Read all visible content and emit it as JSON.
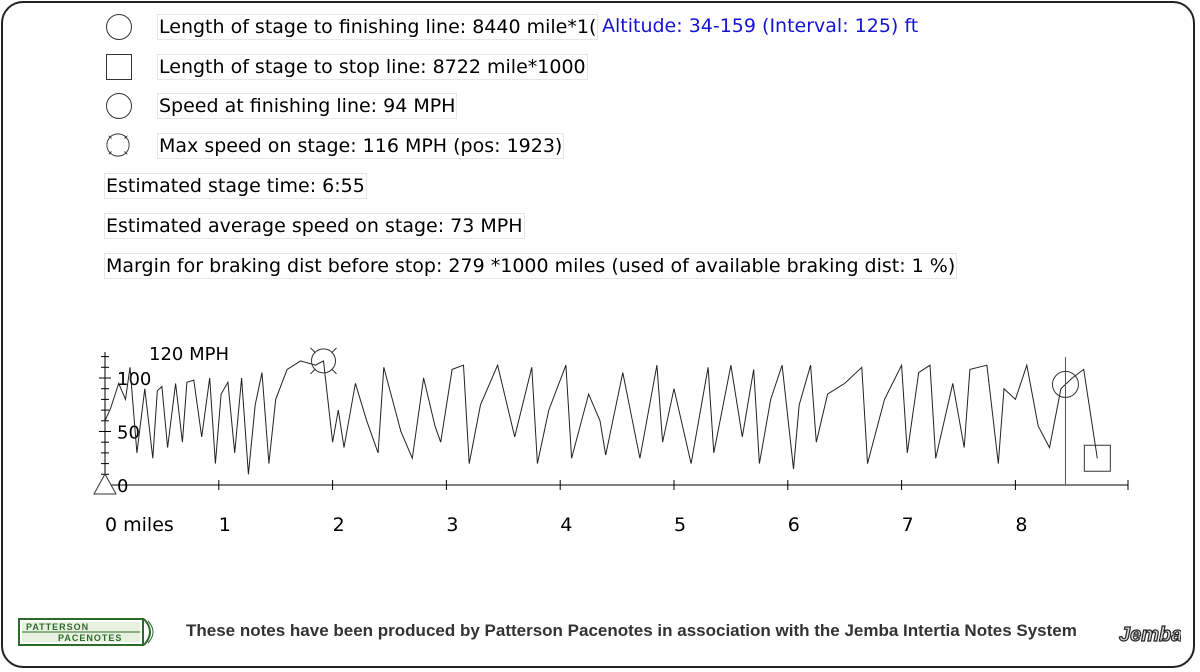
{
  "legend": {
    "finish_length": "Length of stage to finishing line: 8440 mile*1(",
    "altitude": "Altitude: 34-159 (Interval: 125) ft",
    "stop_length": "Length of stage to stop line: 8722 mile*1000",
    "finish_speed": "Speed at finishing line: 94 MPH",
    "max_speed": "Max speed on stage: 116 MPH (pos: 1923)",
    "stage_time": "Estimated stage time: 6:55",
    "avg_speed": "Estimated average speed on stage: 73 MPH",
    "margin": "Margin for braking dist before stop: 279 *1000 miles (used of available braking dist: 1 %)"
  },
  "chart_data": {
    "type": "line",
    "xlabel": "miles",
    "ylabel": "MPH",
    "xlim": [
      0,
      9.3
    ],
    "ylim": [
      0,
      120
    ],
    "x_ticks": [
      0,
      1,
      2,
      3,
      4,
      5,
      6,
      7,
      8
    ],
    "x_tick_labels": [
      "0 miles",
      "1",
      "2",
      "3",
      "4",
      "5",
      "6",
      "7",
      "8"
    ],
    "y_ticks": [
      0,
      50,
      100
    ],
    "y_tick_labels": [
      "0",
      "50",
      "100"
    ],
    "y_max_label": "120 MPH",
    "markers": {
      "max_speed": {
        "x": 1.92,
        "y": 116
      },
      "finish": {
        "x": 8.44,
        "y": 94
      },
      "stop": {
        "x": 8.72,
        "y": 25
      }
    },
    "series": [
      {
        "x": [
          0,
          0.05,
          0.12,
          0.18,
          0.22,
          0.28,
          0.35,
          0.42,
          0.46,
          0.5,
          0.55,
          0.62,
          0.68,
          0.72,
          0.78,
          0.85,
          0.92,
          0.97,
          1.02,
          1.08,
          1.14,
          1.2,
          1.26,
          1.32,
          1.38,
          1.44,
          1.5,
          1.6,
          1.72,
          1.85,
          1.92,
          2.0,
          2.05,
          2.1,
          2.2,
          2.3,
          2.4,
          2.45,
          2.6,
          2.7,
          2.8,
          2.9,
          2.95,
          3.05,
          3.15,
          3.2,
          3.3,
          3.45,
          3.6,
          3.75,
          3.8,
          3.9,
          4.05,
          4.1,
          4.25,
          4.35,
          4.4,
          4.55,
          4.7,
          4.85,
          4.9,
          5.0,
          5.15,
          5.3,
          5.35,
          5.5,
          5.6,
          5.7,
          5.75,
          5.85,
          5.95,
          6.05,
          6.1,
          6.2,
          6.25,
          6.35,
          6.5,
          6.65,
          6.7,
          6.85,
          7.0,
          7.05,
          7.15,
          7.25,
          7.3,
          7.45,
          7.55,
          7.6,
          7.75,
          7.85,
          7.9,
          8.0,
          8.1,
          8.2,
          8.3,
          8.4,
          8.44,
          8.5,
          8.6,
          8.72
        ],
        "y": [
          60,
          72,
          95,
          80,
          110,
          30,
          90,
          25,
          88,
          92,
          35,
          95,
          40,
          96,
          98,
          45,
          100,
          20,
          85,
          96,
          30,
          100,
          10,
          75,
          105,
          20,
          80,
          108,
          116,
          112,
          116,
          40,
          70,
          35,
          95,
          60,
          30,
          110,
          50,
          25,
          100,
          55,
          40,
          108,
          112,
          20,
          75,
          112,
          45,
          110,
          20,
          70,
          112,
          25,
          85,
          60,
          28,
          105,
          25,
          112,
          40,
          90,
          20,
          110,
          30,
          112,
          45,
          108,
          20,
          80,
          112,
          15,
          75,
          112,
          40,
          85,
          95,
          110,
          20,
          80,
          112,
          30,
          105,
          112,
          25,
          95,
          35,
          108,
          112,
          20,
          90,
          80,
          112,
          55,
          35,
          90,
          94,
          100,
          108,
          25
        ]
      }
    ]
  }
}
